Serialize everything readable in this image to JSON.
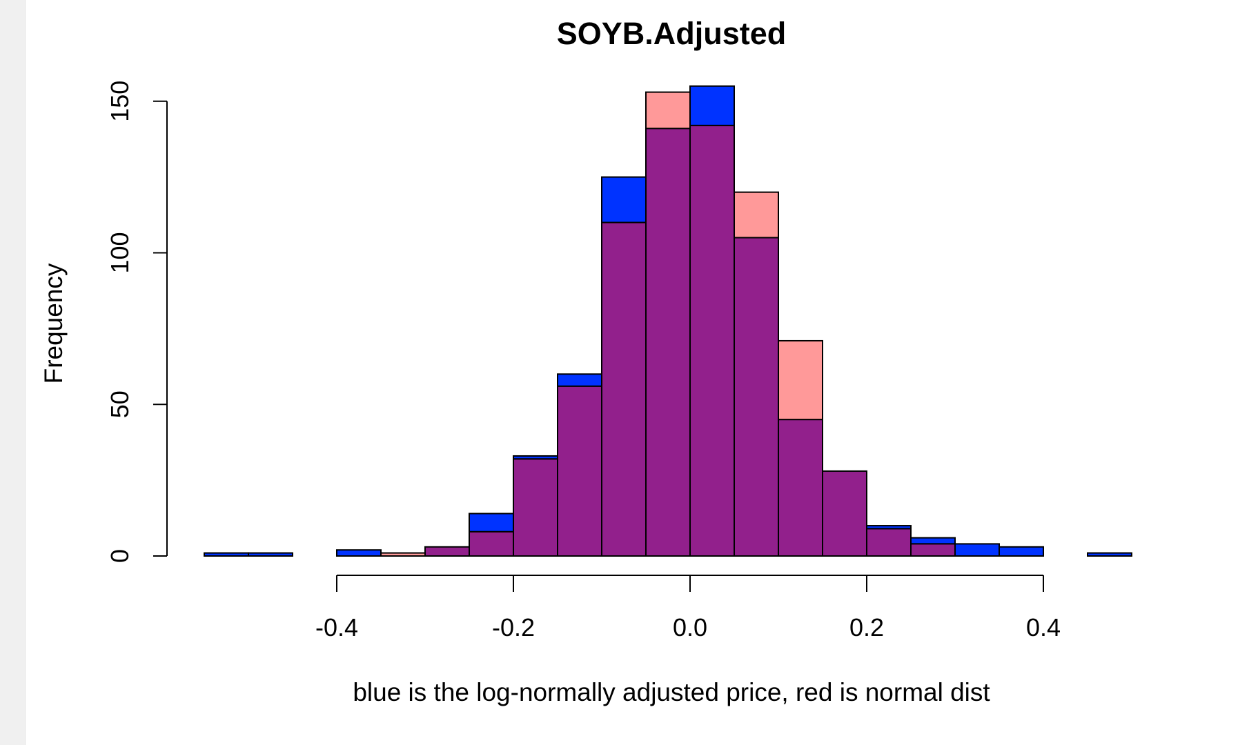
{
  "chart_data": {
    "type": "bar",
    "title": "SOYB.Adjusted",
    "xlabel": "blue is the log-normally adjusted price, red is normal dist",
    "ylabel": "Frequency",
    "xlim": [
      -0.55,
      0.5
    ],
    "ylim": [
      0,
      155
    ],
    "x_ticks": [
      -0.4,
      -0.2,
      0.0,
      0.2,
      0.4
    ],
    "x_tick_labels": [
      "-0.4",
      "-0.2",
      "0.0",
      "0.2",
      "0.4"
    ],
    "y_ticks": [
      0,
      50,
      100,
      150
    ],
    "y_tick_labels": [
      "0",
      "50",
      "100",
      "150"
    ],
    "grid": false,
    "bins": [
      [
        -0.55,
        -0.5
      ],
      [
        -0.5,
        -0.45
      ],
      [
        -0.45,
        -0.4
      ],
      [
        -0.4,
        -0.35
      ],
      [
        -0.35,
        -0.3
      ],
      [
        -0.3,
        -0.25
      ],
      [
        -0.25,
        -0.2
      ],
      [
        -0.2,
        -0.15
      ],
      [
        -0.15,
        -0.1
      ],
      [
        -0.1,
        -0.05
      ],
      [
        -0.05,
        0.0
      ],
      [
        0.0,
        0.05
      ],
      [
        0.05,
        0.1
      ],
      [
        0.1,
        0.15
      ],
      [
        0.15,
        0.2
      ],
      [
        0.2,
        0.25
      ],
      [
        0.25,
        0.3
      ],
      [
        0.3,
        0.35
      ],
      [
        0.35,
        0.4
      ],
      [
        0.4,
        0.45
      ],
      [
        0.45,
        0.5
      ]
    ],
    "series": [
      {
        "color": "#0033ff",
        "values": [
          1,
          1,
          0,
          2,
          0,
          3,
          14,
          33,
          60,
          125,
          141,
          155,
          105,
          45,
          28,
          10,
          6,
          4,
          3,
          0,
          1
        ]
      },
      {
        "color": "#ff9999",
        "values": [
          0,
          0,
          0,
          0,
          1,
          3,
          8,
          32,
          56,
          110,
          153,
          142,
          120,
          71,
          28,
          9,
          4,
          0,
          0,
          0,
          0
        ]
      }
    ],
    "overlap_color": "#92208c"
  }
}
